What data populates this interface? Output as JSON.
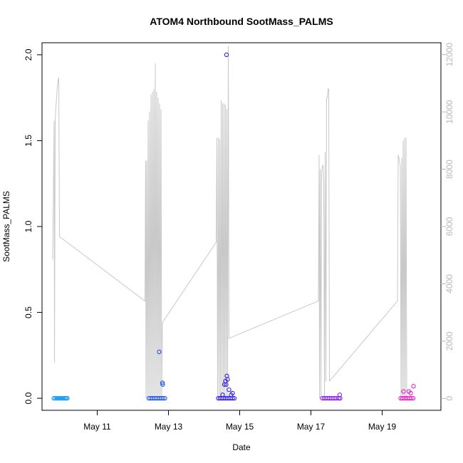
{
  "chart_data": {
    "type": "scatter",
    "title": "ATOM4 Northbound SootMass_PALMS",
    "xlabel": "Date",
    "ylabel": "SootMass_PALMS",
    "x_unit": "day of May",
    "xlim": [
      9.45,
      20.65
    ],
    "ylim": [
      -0.07,
      2.07
    ],
    "y2lim": [
      -414,
      12414
    ],
    "x_ticks": [
      11,
      13,
      15,
      17,
      19
    ],
    "x_tick_labels": [
      "May 11",
      "May 13",
      "May 15",
      "May 17",
      "May 19"
    ],
    "y_ticks": [
      0.0,
      0.5,
      1.0,
      1.5,
      2.0
    ],
    "y_tick_labels": [
      "0.0",
      "0.5",
      "1.0",
      "1.5",
      "2.0"
    ],
    "y2_ticks": [
      0,
      2000,
      4000,
      6000,
      8000,
      10000,
      12000
    ],
    "y2_tick_labels": [
      "0",
      "2000",
      "4000",
      "6000",
      "8000",
      "10000",
      "12000"
    ],
    "grid": false,
    "legend": "none",
    "series": [
      {
        "color": "#1a9bf0",
        "points": [
          [
            9.78,
            0.0
          ],
          [
            9.82,
            0.0
          ],
          [
            9.86,
            0.0
          ],
          [
            9.9,
            0.0
          ],
          [
            9.94,
            0.0
          ],
          [
            9.98,
            0.0
          ],
          [
            10.02,
            0.0
          ],
          [
            10.06,
            0.0
          ],
          [
            10.1,
            0.0
          ],
          [
            10.13,
            0.0
          ],
          [
            10.16,
            0.0
          ]
        ]
      },
      {
        "color": "#1f54e6",
        "points": [
          [
            12.45,
            0.0
          ],
          [
            12.5,
            0.0
          ],
          [
            12.55,
            0.0
          ],
          [
            12.6,
            0.0
          ],
          [
            12.65,
            0.0
          ],
          [
            12.7,
            0.0
          ],
          [
            12.75,
            0.0
          ],
          [
            12.8,
            0.0
          ],
          [
            12.85,
            0.0
          ],
          [
            12.9,
            0.0
          ],
          [
            12.74,
            0.27
          ],
          [
            12.83,
            0.09
          ],
          [
            12.84,
            0.08
          ]
        ]
      },
      {
        "color": "#2f1ee6",
        "points": [
          [
            14.4,
            0.0
          ],
          [
            14.45,
            0.0
          ],
          [
            14.5,
            0.0
          ],
          [
            14.55,
            0.0
          ],
          [
            14.6,
            0.0
          ],
          [
            14.65,
            0.0
          ],
          [
            14.7,
            0.0
          ],
          [
            14.75,
            0.0
          ],
          [
            14.8,
            0.0
          ],
          [
            14.85,
            0.0
          ],
          [
            14.57,
            0.08
          ],
          [
            14.6,
            0.1
          ],
          [
            14.62,
            0.08
          ],
          [
            14.64,
            0.13
          ],
          [
            14.66,
            0.11
          ],
          [
            14.7,
            0.05
          ],
          [
            14.52,
            0.02
          ],
          [
            14.76,
            0.02
          ],
          [
            14.8,
            0.03
          ],
          [
            14.63,
            2.0
          ]
        ]
      },
      {
        "color": "#8a1ee6",
        "points": [
          [
            17.32,
            0.0
          ],
          [
            17.37,
            0.0
          ],
          [
            17.42,
            0.0
          ],
          [
            17.47,
            0.0
          ],
          [
            17.52,
            0.0
          ],
          [
            17.57,
            0.0
          ],
          [
            17.62,
            0.0
          ],
          [
            17.67,
            0.0
          ],
          [
            17.72,
            0.0
          ],
          [
            17.78,
            0.0
          ],
          [
            17.82,
            0.0
          ],
          [
            17.81,
            0.02
          ]
        ]
      },
      {
        "color": "#e61ec6",
        "points": [
          [
            19.52,
            0.0
          ],
          [
            19.57,
            0.0
          ],
          [
            19.62,
            0.0
          ],
          [
            19.67,
            0.0
          ],
          [
            19.72,
            0.0
          ],
          [
            19.77,
            0.0
          ],
          [
            19.82,
            0.0
          ],
          [
            19.87,
            0.0
          ],
          [
            19.6,
            0.04
          ],
          [
            19.75,
            0.04
          ],
          [
            19.8,
            0.03
          ],
          [
            19.88,
            0.07
          ]
        ]
      }
    ],
    "secondary_series": {
      "color": "#c8c8c8",
      "axis": "right",
      "points": [
        [
          9.75,
          4850
        ],
        [
          9.79,
          9700
        ],
        [
          9.8,
          1250
        ],
        [
          9.82,
          9700
        ],
        [
          9.84,
          10200
        ],
        [
          9.86,
          10500
        ],
        [
          9.88,
          10900
        ],
        [
          9.9,
          11100
        ],
        [
          9.92,
          11200
        ],
        [
          9.94,
          5650
        ],
        [
          12.34,
          3400
        ],
        [
          12.36,
          8300
        ],
        [
          12.37,
          0
        ],
        [
          12.39,
          8300
        ],
        [
          12.41,
          0
        ],
        [
          12.43,
          9700
        ],
        [
          12.45,
          0
        ],
        [
          12.47,
          10000
        ],
        [
          12.49,
          0
        ],
        [
          12.51,
          10600
        ],
        [
          12.53,
          0
        ],
        [
          12.55,
          10700
        ],
        [
          12.57,
          0
        ],
        [
          12.59,
          10800
        ],
        [
          12.61,
          0
        ],
        [
          12.63,
          11700
        ],
        [
          12.65,
          0
        ],
        [
          12.67,
          10700
        ],
        [
          12.69,
          0
        ],
        [
          12.71,
          10500
        ],
        [
          12.73,
          0
        ],
        [
          12.75,
          10300
        ],
        [
          12.77,
          0
        ],
        [
          12.79,
          10100
        ],
        [
          12.81,
          0
        ],
        [
          12.83,
          2650
        ],
        [
          14.34,
          5450
        ],
        [
          14.36,
          9100
        ],
        [
          14.38,
          0
        ],
        [
          14.4,
          9100
        ],
        [
          14.42,
          0
        ],
        [
          14.44,
          9050
        ],
        [
          14.46,
          0
        ],
        [
          14.48,
          10400
        ],
        [
          14.5,
          0
        ],
        [
          14.52,
          10300
        ],
        [
          14.54,
          0
        ],
        [
          14.56,
          10300
        ],
        [
          14.58,
          0
        ],
        [
          14.6,
          10250
        ],
        [
          14.62,
          0
        ],
        [
          14.64,
          10100
        ],
        [
          14.66,
          0
        ],
        [
          14.68,
          12300
        ],
        [
          14.7,
          2100
        ],
        [
          17.21,
          3400
        ],
        [
          17.23,
          8500
        ],
        [
          17.24,
          0
        ],
        [
          17.26,
          8000
        ],
        [
          17.28,
          0
        ],
        [
          17.3,
          7900
        ],
        [
          17.32,
          8100
        ],
        [
          17.34,
          8150
        ],
        [
          17.36,
          7500
        ],
        [
          17.38,
          0
        ],
        [
          17.4,
          8600
        ],
        [
          17.42,
          600
        ],
        [
          17.44,
          10500
        ],
        [
          17.46,
          10500
        ],
        [
          17.48,
          10800
        ],
        [
          17.5,
          10800
        ],
        [
          17.52,
          600
        ],
        [
          19.43,
          3400
        ],
        [
          19.45,
          8500
        ],
        [
          19.47,
          8400
        ],
        [
          19.49,
          8250
        ],
        [
          19.51,
          8100
        ],
        [
          19.53,
          0
        ],
        [
          19.55,
          8400
        ],
        [
          19.57,
          0
        ],
        [
          19.59,
          9000
        ],
        [
          19.61,
          0
        ],
        [
          19.63,
          9100
        ],
        [
          19.65,
          0
        ],
        [
          19.67,
          9100
        ],
        [
          19.69,
          0
        ]
      ]
    }
  }
}
